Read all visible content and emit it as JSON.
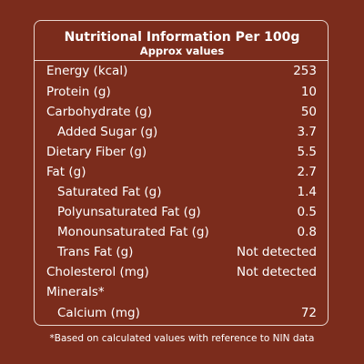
{
  "header": {
    "title": "Nutritional Information Per 100g",
    "subtitle": "Approx values"
  },
  "table": {
    "rows": [
      [
        "Energy (kcal)",
        253
      ],
      [
        "Protein (g)",
        10
      ],
      [
        "Carbohydrate (g)",
        50
      ],
      [
        "Added Sugar (g)",
        3.7
      ],
      [
        "Dietary Fiber (g)",
        5.5
      ],
      [
        "Fat (g)",
        2.7
      ],
      [
        "Saturated Fat (g)",
        1.4
      ],
      [
        "Polyunsaturated Fat (g)",
        0.5
      ],
      [
        "Monounsaturated Fat (g)",
        0.8
      ],
      [
        "Trans Fat (g)",
        "Not detected"
      ],
      [
        "Cholesterol (mg)",
        "Not detected"
      ],
      [
        "Minerals*"
      ],
      [
        "Calcium (mg)",
        72
      ]
    ]
  },
  "footnote": "*Based on calculated values with reference to NIN data"
}
